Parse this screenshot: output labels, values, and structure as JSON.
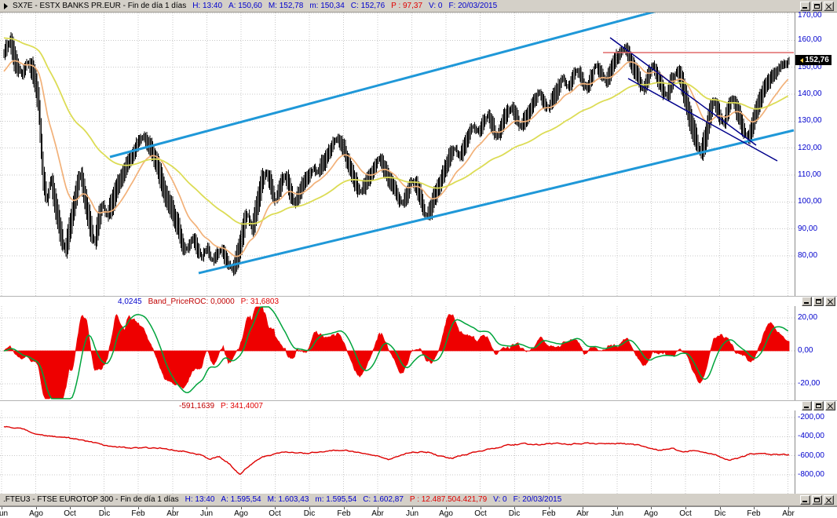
{
  "window": {
    "main_titlebar": {
      "segments": [
        {
          "text": "SX7E - ESTX BANKS PR.EUR - Fin de día 1 días",
          "color": "#000000"
        },
        {
          "text": "H: 13:40",
          "color": "#0000cd"
        },
        {
          "text": "A: 150,60",
          "color": "#0000cd"
        },
        {
          "text": "M: 152,78",
          "color": "#0000cd"
        },
        {
          "text": "m: 150,34",
          "color": "#0000cd"
        },
        {
          "text": "C: 152,76",
          "color": "#0000cd"
        },
        {
          "text": "P : 97,37",
          "color": "#e00000"
        },
        {
          "text": "V: 0",
          "color": "#0000cd"
        },
        {
          "text": "F: 20/03/2015",
          "color": "#0000cd"
        }
      ]
    },
    "roc_header": {
      "segments": [
        {
          "text": "4,0245",
          "color": "#0000cd"
        },
        {
          "text": "Band_PriceROC: 0,0000",
          "color": "#c00000"
        },
        {
          "text": "P: 31,6803",
          "color": "#e00000"
        }
      ]
    },
    "spread_header": {
      "segments": [
        {
          "text": "-591,1639",
          "color": "#c00000"
        },
        {
          "text": "P: 341,4007",
          "color": "#e00000"
        }
      ]
    },
    "fteu3_titlebar": {
      "segments": [
        {
          "text": ".FTEU3 - FTSE EUROTOP 300 - Fin de día 1 días",
          "color": "#000000"
        },
        {
          "text": "H: 13:40",
          "color": "#0000cd"
        },
        {
          "text": "A: 1.595,54",
          "color": "#0000cd"
        },
        {
          "text": "M: 1.603,43",
          "color": "#0000cd"
        },
        {
          "text": "m: 1.595,54",
          "color": "#0000cd"
        },
        {
          "text": "C: 1.602,87",
          "color": "#0000cd"
        },
        {
          "text": "P : 12.487.504.421,79",
          "color": "#e00000"
        },
        {
          "text": "V: 0",
          "color": "#0000cd"
        },
        {
          "text": "F: 20/03/2015",
          "color": "#0000cd"
        }
      ]
    },
    "price_marker": "152,76"
  },
  "chart_data": [
    {
      "panel": "main",
      "type": "bar",
      "symbol": "SX7E",
      "name": "ESTX BANKS PR.EUR",
      "timeframe": "Fin de día 1 días",
      "date": "20/03/2015",
      "open": 150.6,
      "high": 152.78,
      "low": 150.34,
      "close": 152.76,
      "bar_color": "#000000",
      "y_ticks": [
        {
          "v": 170,
          "label": "170,00"
        },
        {
          "v": 160,
          "label": "160,00"
        },
        {
          "v": 150,
          "label": "150,00"
        },
        {
          "v": 140,
          "label": "140,00"
        },
        {
          "v": 130,
          "label": "130,00"
        },
        {
          "v": 120,
          "label": "120,00"
        },
        {
          "v": 110,
          "label": "110,00"
        },
        {
          "v": 100,
          "label": "100,00"
        },
        {
          "v": 90,
          "label": "90,00"
        },
        {
          "v": 80,
          "label": "80,00"
        }
      ],
      "x_labels": [
        "Jun",
        "Ago",
        "Oct",
        "Dic",
        "Feb",
        "Abr",
        "Jun",
        "Ago",
        "Oct",
        "Dic",
        "Feb",
        "Abr",
        "Jun",
        "Ago",
        "Oct",
        "Dic",
        "Feb",
        "Abr",
        "Jun",
        "Ago",
        "Oct",
        "Dic",
        "Feb",
        "Abr"
      ],
      "price_anchors": [
        [
          0.0,
          156
        ],
        [
          0.008,
          161
        ],
        [
          0.015,
          152
        ],
        [
          0.022,
          148
        ],
        [
          0.03,
          153
        ],
        [
          0.038,
          148
        ],
        [
          0.044,
          138
        ],
        [
          0.05,
          110
        ],
        [
          0.055,
          100
        ],
        [
          0.06,
          108
        ],
        [
          0.066,
          98
        ],
        [
          0.072,
          88
        ],
        [
          0.078,
          82
        ],
        [
          0.083,
          90
        ],
        [
          0.088,
          97
        ],
        [
          0.093,
          104
        ],
        [
          0.098,
          110
        ],
        [
          0.104,
          100
        ],
        [
          0.11,
          92
        ],
        [
          0.115,
          86
        ],
        [
          0.12,
          92
        ],
        [
          0.126,
          98
        ],
        [
          0.132,
          94
        ],
        [
          0.138,
          100
        ],
        [
          0.144,
          106
        ],
        [
          0.15,
          110
        ],
        [
          0.156,
          114
        ],
        [
          0.163,
          118
        ],
        [
          0.17,
          122
        ],
        [
          0.177,
          125
        ],
        [
          0.183,
          122
        ],
        [
          0.19,
          117
        ],
        [
          0.197,
          112
        ],
        [
          0.204,
          105
        ],
        [
          0.21,
          100
        ],
        [
          0.216,
          95
        ],
        [
          0.222,
          90
        ],
        [
          0.228,
          85
        ],
        [
          0.234,
          82
        ],
        [
          0.24,
          86
        ],
        [
          0.246,
          82
        ],
        [
          0.252,
          79
        ],
        [
          0.258,
          82
        ],
        [
          0.264,
          78
        ],
        [
          0.27,
          80
        ],
        [
          0.276,
          83
        ],
        [
          0.282,
          79
        ],
        [
          0.288,
          76
        ],
        [
          0.293,
          77
        ],
        [
          0.298,
          81
        ],
        [
          0.304,
          88
        ],
        [
          0.31,
          95
        ],
        [
          0.316,
          90
        ],
        [
          0.322,
          98
        ],
        [
          0.328,
          106
        ],
        [
          0.334,
          110
        ],
        [
          0.34,
          106
        ],
        [
          0.346,
          101
        ],
        [
          0.352,
          105
        ],
        [
          0.358,
          109
        ],
        [
          0.364,
          104
        ],
        [
          0.37,
          99
        ],
        [
          0.376,
          103
        ],
        [
          0.382,
          107
        ],
        [
          0.388,
          110
        ],
        [
          0.394,
          113
        ],
        [
          0.4,
          110
        ],
        [
          0.406,
          114
        ],
        [
          0.412,
          118
        ],
        [
          0.418,
          121
        ],
        [
          0.424,
          123
        ],
        [
          0.43,
          120
        ],
        [
          0.436,
          116
        ],
        [
          0.442,
          112
        ],
        [
          0.448,
          108
        ],
        [
          0.454,
          104
        ],
        [
          0.46,
          107
        ],
        [
          0.466,
          111
        ],
        [
          0.472,
          114
        ],
        [
          0.478,
          117
        ],
        [
          0.484,
          113
        ],
        [
          0.49,
          109
        ],
        [
          0.496,
          105
        ],
        [
          0.502,
          102
        ],
        [
          0.508,
          99
        ],
        [
          0.514,
          103
        ],
        [
          0.52,
          107
        ],
        [
          0.526,
          104
        ],
        [
          0.532,
          99
        ],
        [
          0.538,
          95
        ],
        [
          0.544,
          99
        ],
        [
          0.55,
          104
        ],
        [
          0.556,
          108
        ],
        [
          0.562,
          112
        ],
        [
          0.568,
          116
        ],
        [
          0.574,
          120
        ],
        [
          0.58,
          117
        ],
        [
          0.586,
          121
        ],
        [
          0.592,
          125
        ],
        [
          0.598,
          128
        ],
        [
          0.604,
          125
        ],
        [
          0.61,
          129
        ],
        [
          0.616,
          132
        ],
        [
          0.622,
          128
        ],
        [
          0.628,
          124
        ],
        [
          0.634,
          128
        ],
        [
          0.64,
          132
        ],
        [
          0.646,
          135
        ],
        [
          0.652,
          131
        ],
        [
          0.658,
          127
        ],
        [
          0.664,
          131
        ],
        [
          0.67,
          135
        ],
        [
          0.676,
          138
        ],
        [
          0.682,
          141
        ],
        [
          0.688,
          138
        ],
        [
          0.694,
          135
        ],
        [
          0.7,
          139
        ],
        [
          0.706,
          143
        ],
        [
          0.712,
          146
        ],
        [
          0.718,
          143
        ],
        [
          0.724,
          146
        ],
        [
          0.73,
          149
        ],
        [
          0.736,
          146
        ],
        [
          0.742,
          143
        ],
        [
          0.748,
          147
        ],
        [
          0.754,
          150
        ],
        [
          0.76,
          147
        ],
        [
          0.766,
          144
        ],
        [
          0.772,
          148
        ],
        [
          0.778,
          152
        ],
        [
          0.784,
          155
        ],
        [
          0.79,
          157
        ],
        [
          0.796,
          154
        ],
        [
          0.802,
          150
        ],
        [
          0.808,
          146
        ],
        [
          0.814,
          142
        ],
        [
          0.82,
          146
        ],
        [
          0.826,
          150
        ],
        [
          0.832,
          147
        ],
        [
          0.838,
          143
        ],
        [
          0.844,
          139
        ],
        [
          0.85,
          144
        ],
        [
          0.856,
          148
        ],
        [
          0.862,
          144
        ],
        [
          0.868,
          138
        ],
        [
          0.874,
          131
        ],
        [
          0.88,
          124
        ],
        [
          0.886,
          118
        ],
        [
          0.892,
          124
        ],
        [
          0.898,
          131
        ],
        [
          0.904,
          137
        ],
        [
          0.91,
          133
        ],
        [
          0.916,
          129
        ],
        [
          0.922,
          133
        ],
        [
          0.928,
          137
        ],
        [
          0.934,
          133
        ],
        [
          0.94,
          128
        ],
        [
          0.946,
          124
        ],
        [
          0.952,
          128
        ],
        [
          0.958,
          133
        ],
        [
          0.964,
          138
        ],
        [
          0.97,
          142
        ],
        [
          0.976,
          145
        ],
        [
          0.982,
          148
        ],
        [
          0.988,
          150
        ],
        [
          0.994,
          151
        ],
        [
          1.0,
          152.76
        ]
      ],
      "ema_fast": {
        "period": 32,
        "seed": 148,
        "color": "#f2b179"
      },
      "ema_slow": {
        "period": 120,
        "seed": 161,
        "color": "#dcdc55"
      },
      "trend_lines": [
        {
          "color": "#1f98d8",
          "width": 3,
          "x1": 140,
          "y1": 200,
          "x2": 848,
          "y2": 11
        },
        {
          "color": "#1f98d8",
          "width": 3,
          "x1": 253,
          "y1": 348,
          "x2": 1011,
          "y2": 166
        },
        {
          "color": "#00008b",
          "width": 1.5,
          "x1": 777,
          "y1": 48,
          "x2": 963,
          "y2": 185
        },
        {
          "color": "#00008b",
          "width": 1.5,
          "x1": 800,
          "y1": 100,
          "x2": 990,
          "y2": 205
        },
        {
          "color": "#e06a6a",
          "width": 1.5,
          "x1": 768,
          "y1": 67,
          "x2": 1011,
          "y2": 67
        }
      ]
    },
    {
      "panel": "roc",
      "type": "area",
      "name": "Band_PriceROC",
      "roc_period": 21,
      "histogram_color": "#ee0000",
      "line_color": "#00a43c",
      "line_smooth_period": 20,
      "line_gain": 1.35,
      "y_ticks": [
        {
          "v": 20,
          "label": "20,00"
        },
        {
          "v": 0,
          "label": "0,00"
        },
        {
          "v": -20,
          "label": "-20,00"
        }
      ]
    },
    {
      "panel": "spread",
      "type": "line",
      "color": "#dd0000",
      "last_value": -591.1639,
      "y_ticks": [
        {
          "v": -200,
          "label": "-200,00"
        },
        {
          "v": -400,
          "label": "-400,00"
        },
        {
          "v": -600,
          "label": "-600,00"
        },
        {
          "v": -800,
          "label": "-800,00"
        }
      ],
      "anchors": [
        [
          0.0,
          -295
        ],
        [
          0.02,
          -315
        ],
        [
          0.05,
          -385
        ],
        [
          0.09,
          -425
        ],
        [
          0.13,
          -495
        ],
        [
          0.16,
          -520
        ],
        [
          0.2,
          -522
        ],
        [
          0.23,
          -550
        ],
        [
          0.25,
          -585
        ],
        [
          0.262,
          -635
        ],
        [
          0.274,
          -608
        ],
        [
          0.288,
          -690
        ],
        [
          0.3,
          -795
        ],
        [
          0.313,
          -705
        ],
        [
          0.33,
          -612
        ],
        [
          0.36,
          -556
        ],
        [
          0.385,
          -576
        ],
        [
          0.41,
          -556
        ],
        [
          0.435,
          -542
        ],
        [
          0.455,
          -572
        ],
        [
          0.475,
          -600
        ],
        [
          0.49,
          -636
        ],
        [
          0.505,
          -592
        ],
        [
          0.52,
          -556
        ],
        [
          0.54,
          -562
        ],
        [
          0.555,
          -605
        ],
        [
          0.57,
          -625
        ],
        [
          0.585,
          -592
        ],
        [
          0.6,
          -562
        ],
        [
          0.62,
          -532
        ],
        [
          0.64,
          -492
        ],
        [
          0.66,
          -476
        ],
        [
          0.68,
          -486
        ],
        [
          0.7,
          -472
        ],
        [
          0.72,
          -482
        ],
        [
          0.74,
          -466
        ],
        [
          0.76,
          -476
        ],
        [
          0.78,
          -470
        ],
        [
          0.8,
          -482
        ],
        [
          0.82,
          -512
        ],
        [
          0.835,
          -540
        ],
        [
          0.85,
          -526
        ],
        [
          0.865,
          -552
        ],
        [
          0.88,
          -546
        ],
        [
          0.895,
          -572
        ],
        [
          0.91,
          -606
        ],
        [
          0.925,
          -642
        ],
        [
          0.935,
          -626
        ],
        [
          0.95,
          -586
        ],
        [
          0.965,
          -576
        ],
        [
          0.98,
          -590
        ],
        [
          1.0,
          -591.1639
        ]
      ]
    }
  ]
}
